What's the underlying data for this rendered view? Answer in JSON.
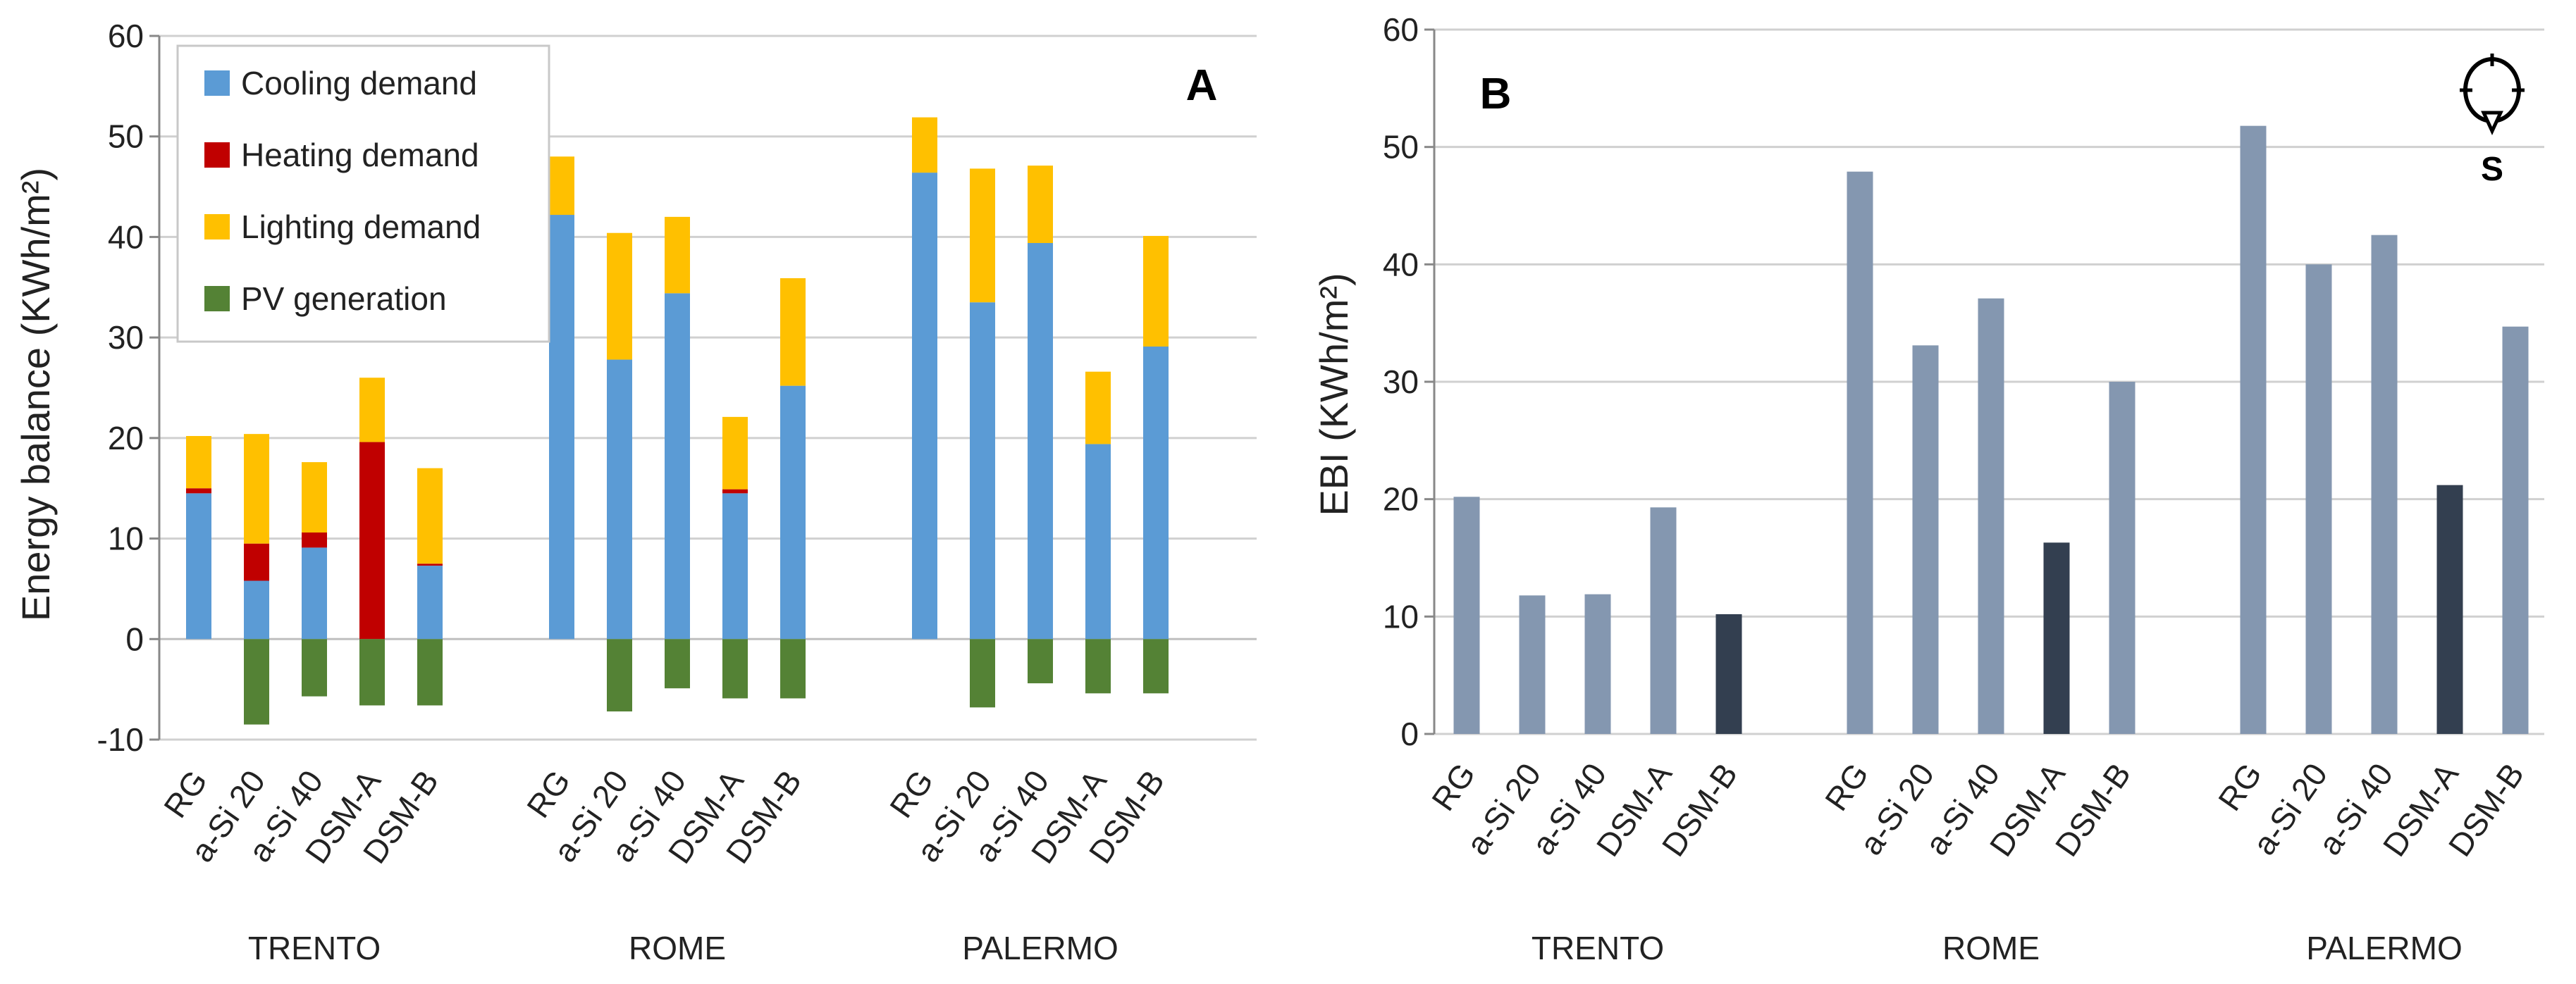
{
  "chart_data": [
    {
      "type": "bar",
      "stacked": true,
      "panel_label": "A",
      "ylabel": "Energy balance (KWh/m²)",
      "ylim": [
        -10,
        60
      ],
      "yticks": [
        -10,
        0,
        10,
        20,
        30,
        40,
        50,
        60
      ],
      "grid": true,
      "legend_position": "top-left",
      "groups": [
        "TRENTO",
        "ROME",
        "PALERMO"
      ],
      "categories": [
        "RG",
        "a-Si 20",
        "a-Si 40",
        "DSM-A",
        "DSM-B"
      ],
      "series": [
        {
          "name": "Cooling demand",
          "color": "#5B9BD5",
          "values": [
            [
              14.5,
              5.8,
              9.1,
              0,
              7.3
            ],
            [
              42.2,
              27.8,
              34.4,
              14.5,
              25.2
            ],
            [
              46.4,
              33.5,
              39.4,
              19.4,
              29.1
            ]
          ]
        },
        {
          "name": "Heating demand",
          "color": "#C00000",
          "values": [
            [
              0.5,
              3.7,
              1.5,
              19.6,
              0.2
            ],
            [
              0,
              0,
              0,
              0.4,
              0
            ],
            [
              0,
              0,
              0,
              0,
              0
            ]
          ]
        },
        {
          "name": "Lighting demand",
          "color": "#FFC000",
          "values": [
            [
              5.2,
              10.9,
              7.0,
              6.4,
              9.5
            ],
            [
              5.8,
              12.6,
              7.6,
              7.2,
              10.7
            ],
            [
              5.5,
              13.3,
              7.7,
              7.2,
              11.0
            ]
          ]
        },
        {
          "name": "PV generation",
          "color": "#548235",
          "values": [
            [
              0,
              -8.5,
              -5.7,
              -6.6,
              -6.6
            ],
            [
              0,
              -7.2,
              -4.9,
              -5.9,
              -5.9
            ],
            [
              0,
              -6.8,
              -4.4,
              -5.4,
              -5.4
            ]
          ]
        }
      ]
    },
    {
      "type": "bar",
      "panel_label": "B",
      "ylabel": "EBI (KWh/m²)",
      "ylim": [
        0,
        60
      ],
      "yticks": [
        0,
        10,
        20,
        30,
        40,
        50,
        60
      ],
      "grid": true,
      "orientation_label": "S",
      "groups": [
        "TRENTO",
        "ROME",
        "PALERMO"
      ],
      "categories": [
        "RG",
        "a-Si 20",
        "a-Si 40",
        "DSM-A",
        "DSM-B"
      ],
      "values": [
        [
          20.2,
          11.8,
          11.9,
          19.3,
          10.2
        ],
        [
          47.9,
          33.1,
          37.1,
          16.3,
          30.0
        ],
        [
          51.8,
          40.0,
          42.5,
          21.2,
          34.7
        ]
      ],
      "highlight": [
        4,
        3,
        3
      ],
      "color": "#8497B0",
      "highlight_color": "#333F50"
    }
  ]
}
